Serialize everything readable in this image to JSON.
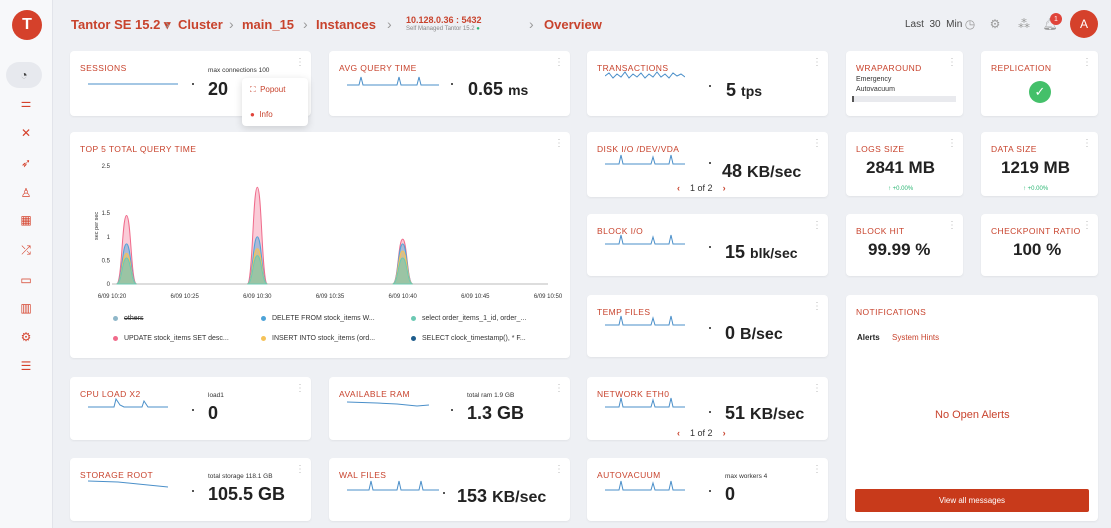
{
  "header": {
    "version": "Tantor SE 15.2",
    "cluster": "Cluster",
    "node": "main_15",
    "instances": "Instances",
    "host": "10.128.0.36 : 5432",
    "host_subtitle": "Self Managed Tantor 15.2",
    "page": "Overview",
    "last_label": "Last",
    "last_value": "30",
    "last_unit": "Min",
    "notifications_count": "1",
    "avatar": "A"
  },
  "sessions": {
    "title": "SESSIONS",
    "max_label": "max connections 100",
    "value": "20",
    "menu": {
      "popout": "Popout",
      "info": "Info"
    }
  },
  "avg_query": {
    "title": "AVG QUERY TIME",
    "value": "0.65",
    "unit": "ms"
  },
  "transactions": {
    "title": "TRANSACTIONS",
    "value": "5",
    "unit": "tps"
  },
  "wraparound": {
    "title": "WRAPAROUND",
    "line1": "Emergency",
    "line2": "Autovacuum"
  },
  "replication": {
    "title": "REPLICATION"
  },
  "top5": {
    "title": "TOP 5 TOTAL QUERY TIME",
    "legend": [
      {
        "label": "others",
        "color": "#8fb7c9"
      },
      {
        "label": "DELETE FROM stock_items W...",
        "color": "#4ea3d8"
      },
      {
        "label": "select order_items_1_id, order_...",
        "color": "#6cc9b3"
      },
      {
        "label": "UPDATE stock_items SET desc...",
        "color": "#f06b8b"
      },
      {
        "label": "INSERT INTO stock_items (ord...",
        "color": "#f5c259"
      },
      {
        "label": "SELECT clock_timestamp(), * F...",
        "color": "#1e5c8c"
      }
    ]
  },
  "chart_data": {
    "type": "area",
    "title": "TOP 5 TOTAL QUERY TIME",
    "ylabel": "sec per sec",
    "xlabel": "",
    "x_ticks": [
      "6/09 10:20",
      "6/09 10:25",
      "6/09 10:30",
      "6/09 10:35",
      "6/09 10:40",
      "6/09 10:45",
      "6/09 10:50"
    ],
    "y_ticks": [
      "2.5",
      "1.5",
      "1",
      "0.5",
      "0"
    ],
    "ylim": [
      0,
      2.5
    ],
    "peaks_at": [
      "6/09 10:21",
      "6/09 10:30",
      "6/09 10:40"
    ],
    "series": [
      {
        "name": "UPDATE stock_items SET desc...",
        "values": [
          1.45,
          2.05,
          0.95
        ]
      },
      {
        "name": "DELETE FROM stock_items W...",
        "values": [
          0.85,
          1.0,
          0.85
        ]
      },
      {
        "name": "INSERT INTO stock_items (ord...",
        "values": [
          0.65,
          0.75,
          0.7
        ]
      },
      {
        "name": "select order_items_1_id, order_...",
        "values": [
          0.55,
          0.6,
          0.55
        ]
      }
    ],
    "legend_position": "bottom"
  },
  "disk_io": {
    "title": "DISK I/O  /DEV/VDA",
    "value": "48",
    "unit": "KB/sec",
    "pager": "1 of 2"
  },
  "logs": {
    "title": "LOGS SIZE",
    "value": "2841 MB",
    "delta": "↑ +0.00%"
  },
  "data_size": {
    "title": "DATA SIZE",
    "value": "1219 MB",
    "delta": "↑ +0.00%"
  },
  "block_io": {
    "title": "BLOCK I/O",
    "value": "15",
    "unit": "blk/sec"
  },
  "block_hit": {
    "title": "BLOCK HIT",
    "value": "99.99 %"
  },
  "checkpoint": {
    "title": "CHECKPOINT RATIO",
    "value": "100 %"
  },
  "temp_files": {
    "title": "TEMP FILES",
    "value": "0",
    "unit": "B/sec"
  },
  "notifications": {
    "title": "NOTIFICATIONS",
    "tab_alerts": "Alerts",
    "tab_hints": "System Hints",
    "empty": "No Open Alerts",
    "button": "View all messages"
  },
  "cpu": {
    "title": "CPU LOAD X2",
    "sub": "load1",
    "value": "0"
  },
  "ram": {
    "title": "AVAILABLE RAM",
    "sub": "total ram 1.9 GB",
    "value": "1.3 GB"
  },
  "network": {
    "title": "NETWORK  ETH0",
    "value": "51",
    "unit": "KB/sec",
    "pager": "1 of 2"
  },
  "storage": {
    "title": "STORAGE  ROOT",
    "sub": "total storage 118.1 GB",
    "value": "105.5 GB"
  },
  "wal": {
    "title": "WAL FILES",
    "value": "153",
    "unit": "KB/sec"
  },
  "autovacuum": {
    "title": "AUTOVACUUM",
    "sub": "max workers 4",
    "value": "0"
  },
  "colors": {
    "accent": "#c8432d",
    "spark": "#4a8fc9",
    "ok": "#2bb673"
  }
}
